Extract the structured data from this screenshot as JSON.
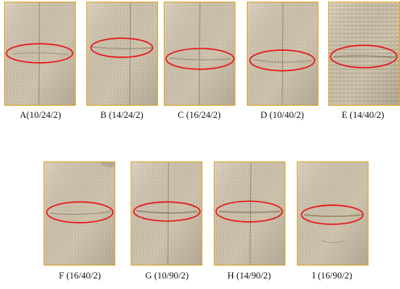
{
  "panels": [
    {
      "label": "A(10/24/2)"
    },
    {
      "label": "B (14/24/2)"
    },
    {
      "label": "C (16/24/2)"
    },
    {
      "label": "D (10/40/2)"
    },
    {
      "label": "E (14/40/2)"
    },
    {
      "label": "F (16/40/2)"
    },
    {
      "label": "G (10/90/2)"
    },
    {
      "label": "H (14/90/2)"
    },
    {
      "label": "I (16/90/2)"
    }
  ],
  "colors": {
    "fabric": "#cfc3ad",
    "panel_border": "#e2a92c",
    "highlight_ellipse": "#e8141a"
  },
  "icons": {
    "highlight": "red-ellipse-marker"
  }
}
